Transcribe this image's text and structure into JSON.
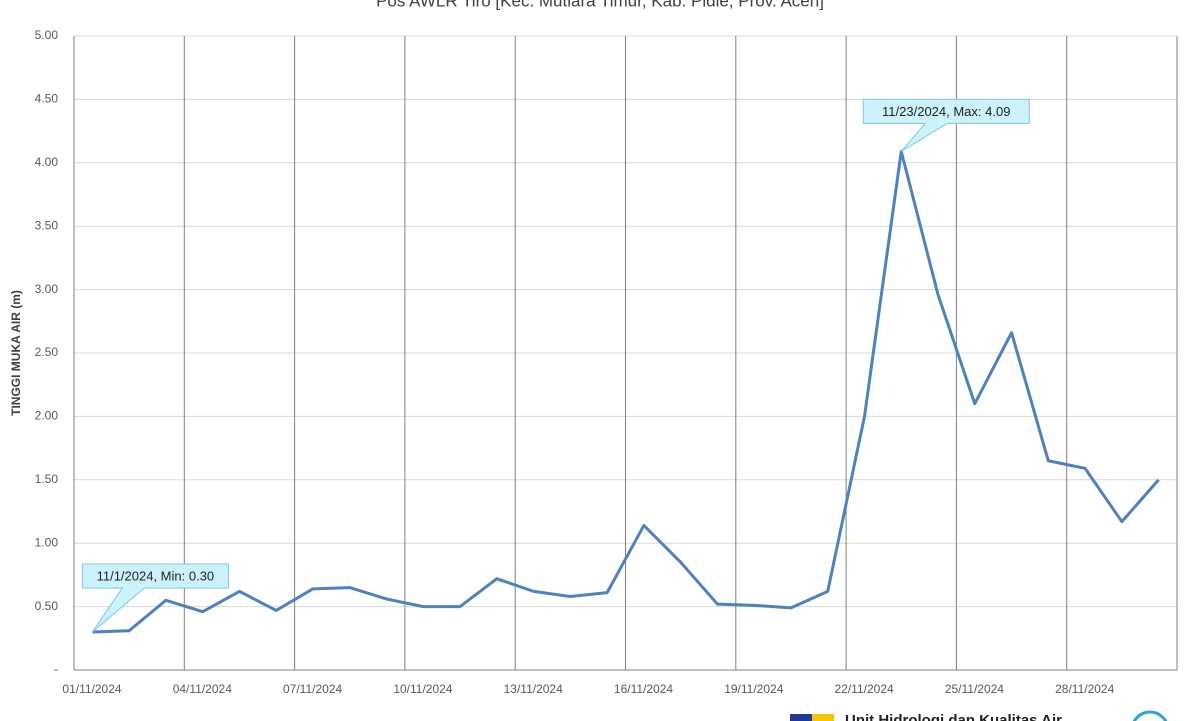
{
  "chart_data": {
    "type": "line",
    "title": "Pos AWLR Tiro [Kec. Mutiara Timur, Kab. Pidie, Prov. Aceh]",
    "y_label": "TINGGI MUKA AIR (m)",
    "categories": [
      "01/11/2024",
      null,
      null,
      "04/11/2024",
      null,
      null,
      "07/11/2024",
      null,
      null,
      "10/11/2024",
      null,
      null,
      "13/11/2024",
      null,
      null,
      "16/11/2024",
      null,
      null,
      "19/11/2024",
      null,
      null,
      "22/11/2024",
      null,
      null,
      "25/11/2024",
      null,
      null,
      "28/11/2024",
      null,
      null
    ],
    "series": [
      {
        "name": "Tinggi Muka Air",
        "color": "#4f81bd",
        "values": [
          0.3,
          0.31,
          0.55,
          0.46,
          0.62,
          0.47,
          0.64,
          0.65,
          0.56,
          0.5,
          0.5,
          0.72,
          0.62,
          0.58,
          0.61,
          1.14,
          0.85,
          0.52,
          0.51,
          0.49,
          0.62,
          2.0,
          4.09,
          2.96,
          2.1,
          2.66,
          1.65,
          1.59,
          1.17,
          1.5
        ]
      }
    ],
    "ylim": [
      0,
      5
    ],
    "yticks": [
      {
        "value": 0,
        "label": "-"
      },
      {
        "value": 0.5,
        "label": "0.50"
      },
      {
        "value": 1,
        "label": "1.00"
      },
      {
        "value": 1.5,
        "label": "1.50"
      },
      {
        "value": 2,
        "label": "2.00"
      },
      {
        "value": 2.5,
        "label": "2.50"
      },
      {
        "value": 3,
        "label": "3.00"
      },
      {
        "value": 3.5,
        "label": "3.50"
      },
      {
        "value": 4,
        "label": "4.00"
      },
      {
        "value": 4.5,
        "label": "4.50"
      },
      {
        "value": 5,
        "label": "5.00"
      }
    ],
    "annotations": [
      "11/1/2024, Min: 0.30",
      "11/23/2024, Max: 4.09"
    ],
    "grid": true,
    "footer": "Unit Hidrologi dan Kualitas Air"
  }
}
